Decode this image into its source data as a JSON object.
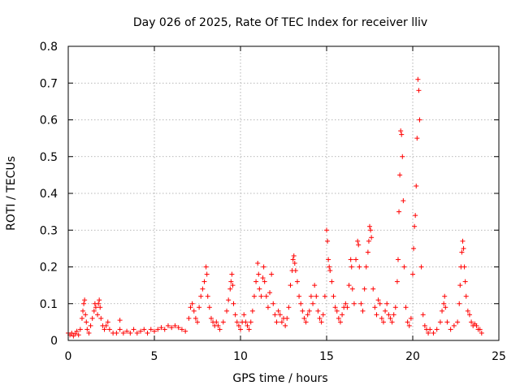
{
  "chart_data": {
    "type": "scatter",
    "title": "Day 026 of 2025, Rate Of TEC Index for receiver lliv",
    "xlabel": "GPS time / hours",
    "ylabel": "ROTI / TECUs",
    "xlim": [
      0,
      25
    ],
    "ylim": [
      0,
      0.8
    ],
    "xticks": [
      0,
      5,
      10,
      15,
      20,
      25
    ],
    "yticks": [
      0,
      0.1,
      0.2,
      0.3,
      0.4,
      0.5,
      0.6,
      0.7,
      0.8
    ],
    "ytick_labels": [
      "0",
      "0.1",
      "0.2",
      "0.3",
      "0.4",
      "0.5",
      "0.6",
      "0.7",
      "0.8"
    ],
    "grid": true,
    "marker": "+",
    "marker_color": "#ff0000",
    "series": [
      {
        "name": "ROTI",
        "points": [
          [
            0.0,
            0.02
          ],
          [
            0.1,
            0.015
          ],
          [
            0.2,
            0.02
          ],
          [
            0.3,
            0.012
          ],
          [
            0.4,
            0.018
          ],
          [
            0.5,
            0.025
          ],
          [
            0.6,
            0.015
          ],
          [
            0.7,
            0.03
          ],
          [
            0.8,
            0.06
          ],
          [
            0.85,
            0.08
          ],
          [
            0.9,
            0.1
          ],
          [
            0.95,
            0.11
          ],
          [
            1.0,
            0.07
          ],
          [
            1.05,
            0.05
          ],
          [
            1.1,
            0.03
          ],
          [
            1.2,
            0.02
          ],
          [
            1.3,
            0.04
          ],
          [
            1.4,
            0.06
          ],
          [
            1.5,
            0.08
          ],
          [
            1.55,
            0.1
          ],
          [
            1.6,
            0.09
          ],
          [
            1.7,
            0.07
          ],
          [
            1.75,
            0.1
          ],
          [
            1.8,
            0.11
          ],
          [
            1.85,
            0.09
          ],
          [
            1.9,
            0.06
          ],
          [
            2.0,
            0.04
          ],
          [
            2.1,
            0.03
          ],
          [
            2.2,
            0.04
          ],
          [
            2.3,
            0.05
          ],
          [
            2.4,
            0.03
          ],
          [
            2.6,
            0.02
          ],
          [
            2.8,
            0.02
          ],
          [
            3.0,
            0.03
          ],
          [
            3.0,
            0.055
          ],
          [
            3.2,
            0.02
          ],
          [
            3.4,
            0.025
          ],
          [
            3.6,
            0.02
          ],
          [
            3.8,
            0.03
          ],
          [
            4.0,
            0.02
          ],
          [
            4.2,
            0.025
          ],
          [
            4.4,
            0.03
          ],
          [
            4.6,
            0.02
          ],
          [
            4.8,
            0.03
          ],
          [
            5.0,
            0.025
          ],
          [
            5.2,
            0.03
          ],
          [
            5.4,
            0.035
          ],
          [
            5.6,
            0.03
          ],
          [
            5.8,
            0.04
          ],
          [
            6.0,
            0.035
          ],
          [
            6.2,
            0.04
          ],
          [
            6.4,
            0.035
          ],
          [
            6.6,
            0.03
          ],
          [
            6.8,
            0.025
          ],
          [
            7.0,
            0.06
          ],
          [
            7.1,
            0.09
          ],
          [
            7.2,
            0.1
          ],
          [
            7.3,
            0.08
          ],
          [
            7.4,
            0.06
          ],
          [
            7.5,
            0.05
          ],
          [
            7.6,
            0.09
          ],
          [
            7.7,
            0.12
          ],
          [
            7.8,
            0.14
          ],
          [
            7.9,
            0.16
          ],
          [
            8.0,
            0.2
          ],
          [
            8.05,
            0.18
          ],
          [
            8.1,
            0.12
          ],
          [
            8.2,
            0.09
          ],
          [
            8.3,
            0.06
          ],
          [
            8.4,
            0.05
          ],
          [
            8.5,
            0.04
          ],
          [
            8.6,
            0.05
          ],
          [
            8.7,
            0.04
          ],
          [
            8.8,
            0.03
          ],
          [
            9.0,
            0.05
          ],
          [
            9.2,
            0.08
          ],
          [
            9.3,
            0.11
          ],
          [
            9.4,
            0.14
          ],
          [
            9.45,
            0.16
          ],
          [
            9.5,
            0.18
          ],
          [
            9.55,
            0.15
          ],
          [
            9.6,
            0.1
          ],
          [
            9.7,
            0.07
          ],
          [
            9.8,
            0.05
          ],
          [
            9.9,
            0.04
          ],
          [
            10.0,
            0.03
          ],
          [
            10.1,
            0.05
          ],
          [
            10.2,
            0.07
          ],
          [
            10.3,
            0.05
          ],
          [
            10.4,
            0.04
          ],
          [
            10.5,
            0.03
          ],
          [
            10.6,
            0.05
          ],
          [
            10.7,
            0.08
          ],
          [
            10.8,
            0.12
          ],
          [
            10.9,
            0.16
          ],
          [
            11.0,
            0.21
          ],
          [
            11.05,
            0.18
          ],
          [
            11.1,
            0.14
          ],
          [
            11.2,
            0.12
          ],
          [
            11.3,
            0.17
          ],
          [
            11.35,
            0.2
          ],
          [
            11.4,
            0.16
          ],
          [
            11.5,
            0.12
          ],
          [
            11.6,
            0.09
          ],
          [
            11.7,
            0.13
          ],
          [
            11.8,
            0.18
          ],
          [
            11.9,
            0.1
          ],
          [
            12.0,
            0.07
          ],
          [
            12.1,
            0.05
          ],
          [
            12.2,
            0.08
          ],
          [
            12.3,
            0.07
          ],
          [
            12.4,
            0.05
          ],
          [
            12.5,
            0.06
          ],
          [
            12.6,
            0.04
          ],
          [
            12.7,
            0.06
          ],
          [
            12.8,
            0.09
          ],
          [
            12.9,
            0.15
          ],
          [
            13.0,
            0.19
          ],
          [
            13.05,
            0.22
          ],
          [
            13.1,
            0.23
          ],
          [
            13.15,
            0.21
          ],
          [
            13.2,
            0.19
          ],
          [
            13.3,
            0.16
          ],
          [
            13.4,
            0.12
          ],
          [
            13.5,
            0.1
          ],
          [
            13.6,
            0.08
          ],
          [
            13.7,
            0.06
          ],
          [
            13.8,
            0.05
          ],
          [
            13.9,
            0.07
          ],
          [
            14.0,
            0.08
          ],
          [
            14.1,
            0.12
          ],
          [
            14.2,
            0.1
          ],
          [
            14.3,
            0.15
          ],
          [
            14.4,
            0.12
          ],
          [
            14.5,
            0.08
          ],
          [
            14.6,
            0.06
          ],
          [
            14.7,
            0.05
          ],
          [
            14.8,
            0.07
          ],
          [
            14.9,
            0.12
          ],
          [
            15.0,
            0.3
          ],
          [
            15.05,
            0.27
          ],
          [
            15.1,
            0.22
          ],
          [
            15.15,
            0.2
          ],
          [
            15.2,
            0.19
          ],
          [
            15.3,
            0.16
          ],
          [
            15.4,
            0.12
          ],
          [
            15.5,
            0.09
          ],
          [
            15.6,
            0.08
          ],
          [
            15.7,
            0.06
          ],
          [
            15.8,
            0.05
          ],
          [
            15.9,
            0.07
          ],
          [
            16.0,
            0.09
          ],
          [
            16.1,
            0.1
          ],
          [
            16.2,
            0.09
          ],
          [
            16.3,
            0.15
          ],
          [
            16.4,
            0.22
          ],
          [
            16.45,
            0.2
          ],
          [
            16.5,
            0.14
          ],
          [
            16.6,
            0.1
          ],
          [
            16.7,
            0.22
          ],
          [
            16.8,
            0.27
          ],
          [
            16.85,
            0.26
          ],
          [
            16.9,
            0.2
          ],
          [
            17.0,
            0.1
          ],
          [
            17.1,
            0.08
          ],
          [
            17.2,
            0.14
          ],
          [
            17.3,
            0.2
          ],
          [
            17.4,
            0.24
          ],
          [
            17.45,
            0.27
          ],
          [
            17.5,
            0.31
          ],
          [
            17.55,
            0.3
          ],
          [
            17.6,
            0.28
          ],
          [
            17.7,
            0.14
          ],
          [
            17.8,
            0.09
          ],
          [
            17.9,
            0.07
          ],
          [
            18.0,
            0.11
          ],
          [
            18.1,
            0.1
          ],
          [
            18.2,
            0.06
          ],
          [
            18.3,
            0.05
          ],
          [
            18.4,
            0.08
          ],
          [
            18.5,
            0.1
          ],
          [
            18.6,
            0.07
          ],
          [
            18.7,
            0.06
          ],
          [
            18.8,
            0.05
          ],
          [
            18.9,
            0.07
          ],
          [
            19.0,
            0.09
          ],
          [
            19.1,
            0.16
          ],
          [
            19.15,
            0.22
          ],
          [
            19.2,
            0.35
          ],
          [
            19.25,
            0.45
          ],
          [
            19.3,
            0.57
          ],
          [
            19.35,
            0.56
          ],
          [
            19.4,
            0.5
          ],
          [
            19.45,
            0.38
          ],
          [
            19.5,
            0.2
          ],
          [
            19.6,
            0.09
          ],
          [
            19.7,
            0.05
          ],
          [
            19.8,
            0.04
          ],
          [
            19.9,
            0.06
          ],
          [
            20.0,
            0.18
          ],
          [
            20.05,
            0.25
          ],
          [
            20.1,
            0.31
          ],
          [
            20.15,
            0.34
          ],
          [
            20.2,
            0.42
          ],
          [
            20.25,
            0.55
          ],
          [
            20.3,
            0.71
          ],
          [
            20.35,
            0.68
          ],
          [
            20.4,
            0.6
          ],
          [
            20.5,
            0.2
          ],
          [
            20.6,
            0.07
          ],
          [
            20.7,
            0.04
          ],
          [
            20.8,
            0.03
          ],
          [
            20.9,
            0.02
          ],
          [
            21.0,
            0.03
          ],
          [
            21.2,
            0.02
          ],
          [
            21.4,
            0.03
          ],
          [
            21.6,
            0.05
          ],
          [
            21.7,
            0.08
          ],
          [
            21.8,
            0.1
          ],
          [
            21.85,
            0.12
          ],
          [
            21.9,
            0.09
          ],
          [
            22.0,
            0.05
          ],
          [
            22.2,
            0.03
          ],
          [
            22.4,
            0.04
          ],
          [
            22.6,
            0.05
          ],
          [
            22.7,
            0.1
          ],
          [
            22.75,
            0.15
          ],
          [
            22.8,
            0.2
          ],
          [
            22.85,
            0.24
          ],
          [
            22.9,
            0.27
          ],
          [
            22.95,
            0.25
          ],
          [
            23.0,
            0.2
          ],
          [
            23.05,
            0.16
          ],
          [
            23.1,
            0.12
          ],
          [
            23.2,
            0.08
          ],
          [
            23.3,
            0.07
          ],
          [
            23.4,
            0.05
          ],
          [
            23.5,
            0.04
          ],
          [
            23.6,
            0.045
          ],
          [
            23.7,
            0.04
          ],
          [
            23.8,
            0.03
          ],
          [
            23.9,
            0.03
          ],
          [
            24.0,
            0.02
          ]
        ]
      }
    ]
  }
}
